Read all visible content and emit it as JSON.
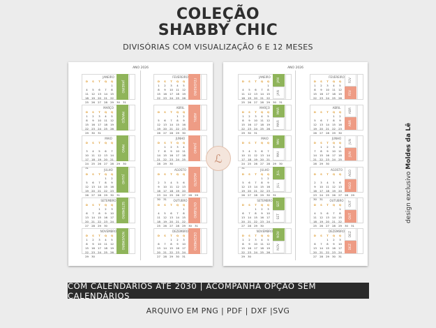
{
  "header": {
    "title_line1": "COLEÇÃO",
    "title_line2": "SHABBY CHIC",
    "subtitle": "DIVISÓRIAS COM VISUALIZAÇÃO 6 E 12 MESES"
  },
  "year_label": "ANO 2026",
  "weekday_header": [
    "D",
    "S",
    "T",
    "Q",
    "Q",
    "S",
    "S"
  ],
  "colors": {
    "green": "#8fb45a",
    "pink": "#ee9c85",
    "banner": "#2b2b2b"
  },
  "months": [
    {
      "name": "JANEIRO",
      "tab": "JANEIRO",
      "abbr": "JAN",
      "start": 4,
      "days": 31
    },
    {
      "name": "FEVEREIRO",
      "tab": "FEVEREIRO",
      "abbr": "FEV",
      "start": 0,
      "days": 28
    },
    {
      "name": "MARÇO",
      "tab": "MARÇO",
      "abbr": "MAR",
      "start": 0,
      "days": 31
    },
    {
      "name": "ABRIL",
      "tab": "ABRIL",
      "abbr": "ABR",
      "start": 3,
      "days": 30
    },
    {
      "name": "MAIO",
      "tab": "MAIO",
      "abbr": "MAI",
      "start": 5,
      "days": 31
    },
    {
      "name": "JUNHO",
      "tab": "JUNHO",
      "abbr": "JUN",
      "start": 1,
      "days": 30
    },
    {
      "name": "JULHO",
      "tab": "JULHO",
      "abbr": "JUL",
      "start": 3,
      "days": 31
    },
    {
      "name": "AGOSTO",
      "tab": "AGOSTO",
      "abbr": "AGO",
      "start": 6,
      "days": 31
    },
    {
      "name": "SETEMBRO",
      "tab": "SETEMBRO",
      "abbr": "SET",
      "start": 2,
      "days": 30
    },
    {
      "name": "OUTUBRO",
      "tab": "OUTUBRO",
      "abbr": "OUT",
      "start": 4,
      "days": 31
    },
    {
      "name": "NOVEMBRO",
      "tab": "NOVEMBRO",
      "abbr": "NOV",
      "start": 0,
      "days": 30
    },
    {
      "name": "DEZEMBRO",
      "tab": "DEZEMBRO",
      "abbr": "DEZ",
      "start": 2,
      "days": 31
    }
  ],
  "stamp_glyph": "ℒ",
  "side_credit": {
    "prefix": "design exclusivo ",
    "brand": "Moldes da Lê"
  },
  "banner_text": "COM CALENDÁRIOS ATÉ 2030 | ACOMPANHA OPÇÃO SEM CALENDÁRIOS",
  "formats_text": "ARQUIVO EM PNG | PDF | DXF |SVG"
}
